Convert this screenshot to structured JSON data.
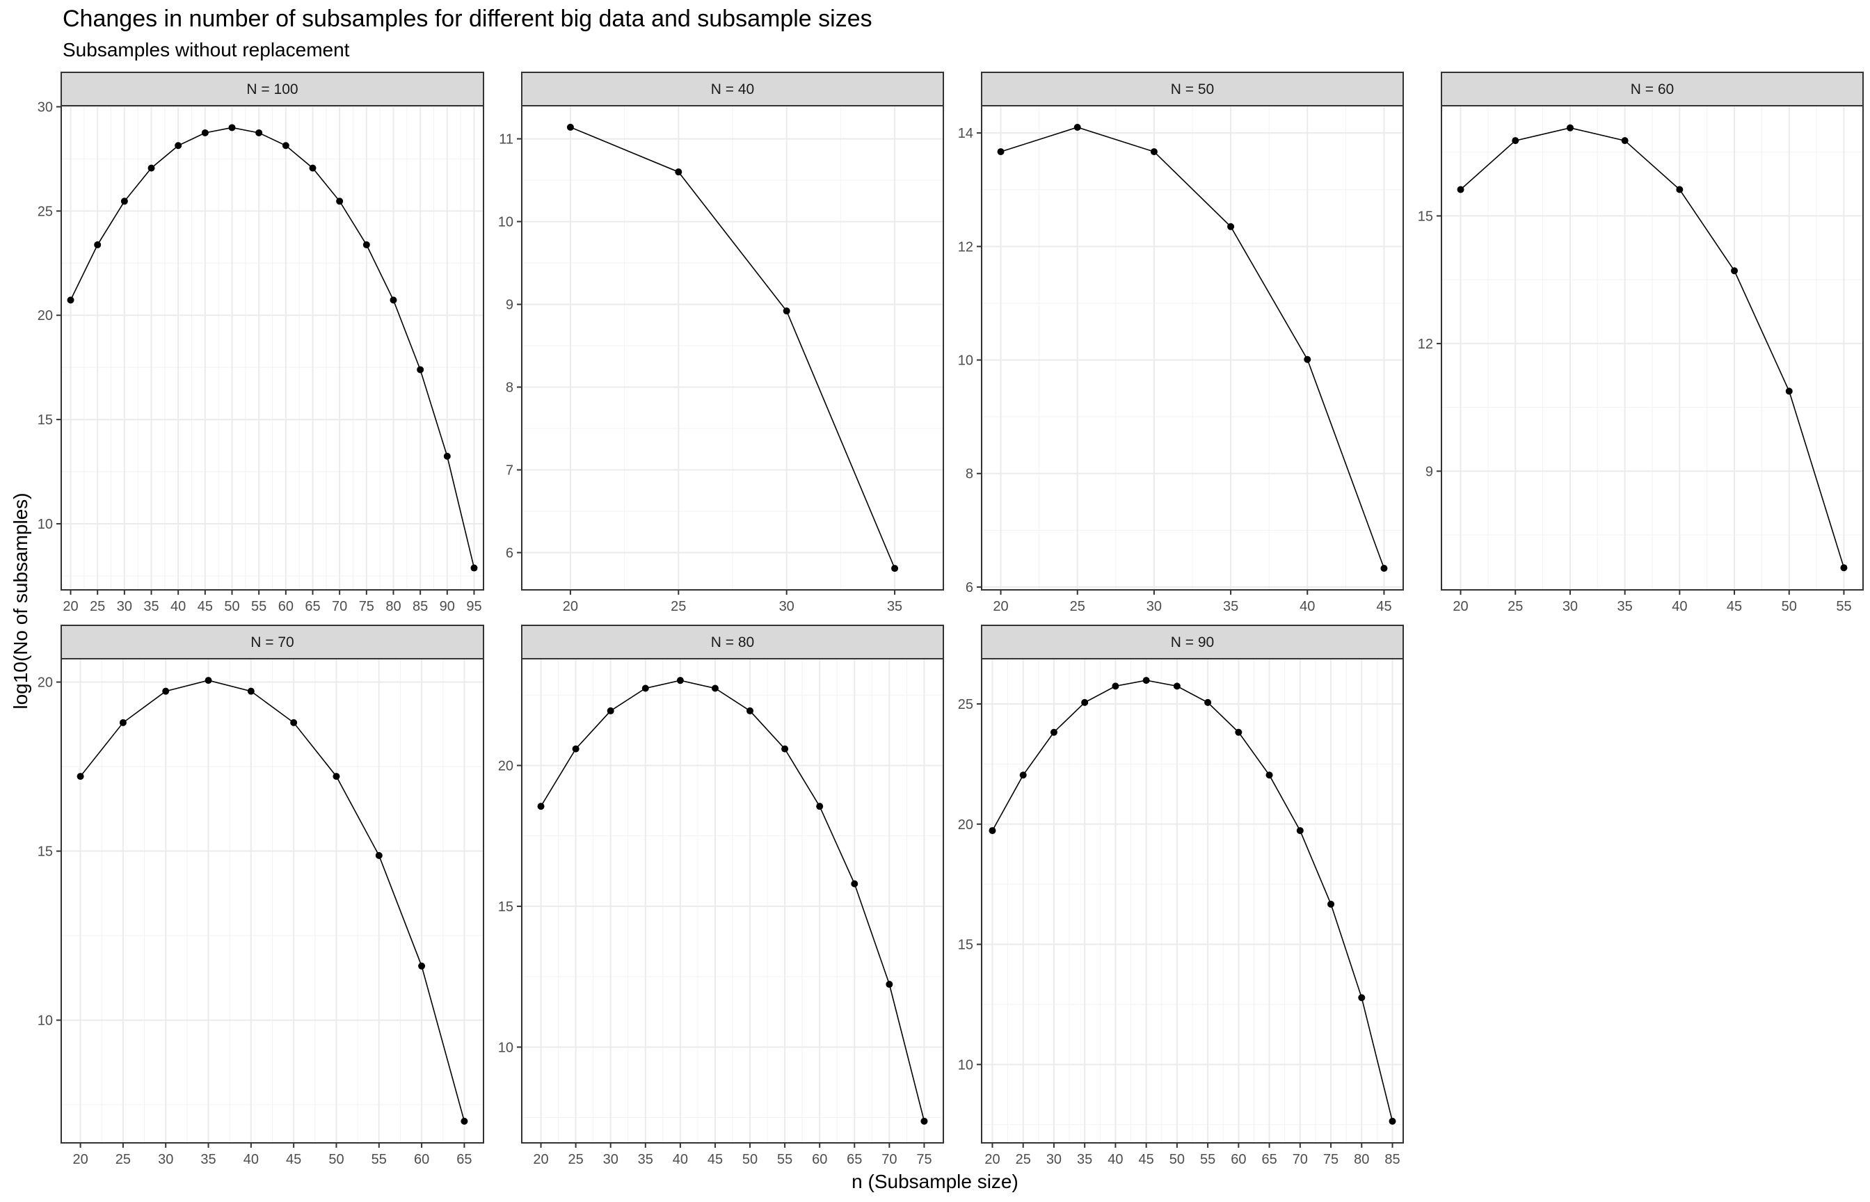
{
  "chart_data": {
    "type": "line",
    "title": "Changes in number of subsamples for different big data and subsample sizes",
    "subtitle": "Subsamples without replacement",
    "xlabel": "n (Subsample size)",
    "ylabel": "log10(No of subsamples)",
    "grid": true,
    "facets": [
      {
        "strip": "N = 100",
        "x": [
          20,
          25,
          30,
          35,
          40,
          45,
          50,
          55,
          60,
          65,
          70,
          75,
          80,
          85,
          90,
          95
        ],
        "y": [
          20.73,
          23.38,
          25.47,
          27.06,
          28.14,
          28.75,
          29.0,
          28.75,
          28.14,
          27.06,
          25.47,
          23.38,
          20.73,
          17.39,
          13.24,
          7.88
        ],
        "xlim": [
          18.25,
          96.75
        ],
        "ylim": [
          6.83,
          30.05
        ],
        "xticks": [
          20,
          25,
          30,
          35,
          40,
          45,
          50,
          55,
          60,
          65,
          70,
          75,
          80,
          85,
          90,
          95
        ],
        "yticks": [
          10,
          15,
          20,
          25,
          30
        ]
      },
      {
        "strip": "N = 40",
        "x": [
          20,
          25,
          30,
          35
        ],
        "y": [
          11.14,
          10.6,
          8.92,
          5.81
        ],
        "xlim": [
          17.75,
          37.25
        ],
        "ylim": [
          5.55,
          11.4
        ],
        "xticks": [
          20,
          25,
          30,
          35
        ],
        "yticks": [
          6,
          7,
          8,
          9,
          10,
          11
        ]
      },
      {
        "strip": "N = 50",
        "x": [
          20,
          25,
          30,
          35,
          40,
          45
        ],
        "y": [
          13.67,
          14.1,
          13.67,
          12.35,
          10.01,
          6.33
        ],
        "xlim": [
          18.75,
          46.25
        ],
        "ylim": [
          5.95,
          14.48
        ],
        "xticks": [
          20,
          25,
          30,
          35,
          40,
          45
        ],
        "yticks": [
          6,
          8,
          10,
          12,
          14
        ]
      },
      {
        "strip": "N = 60",
        "x": [
          20,
          25,
          30,
          35,
          40,
          45,
          50,
          55
        ],
        "y": [
          15.62,
          16.77,
          17.07,
          16.77,
          15.62,
          13.71,
          10.88,
          6.73
        ],
        "xlim": [
          18.25,
          56.75
        ],
        "ylim": [
          6.21,
          17.59
        ],
        "xticks": [
          20,
          25,
          30,
          35,
          40,
          45,
          50,
          55
        ],
        "yticks": [
          9,
          12,
          15
        ]
      },
      {
        "strip": "N = 70",
        "x": [
          20,
          25,
          30,
          35,
          40,
          45,
          50,
          55,
          60,
          65
        ],
        "y": [
          17.21,
          18.8,
          19.73,
          20.05,
          19.73,
          18.8,
          17.21,
          14.87,
          11.6,
          7.01
        ],
        "xlim": [
          17.75,
          67.25
        ],
        "ylim": [
          6.37,
          20.69
        ],
        "xticks": [
          20,
          25,
          30,
          35,
          40,
          45,
          50,
          55,
          60,
          65
        ],
        "yticks": [
          10,
          15,
          20
        ]
      },
      {
        "strip": "N = 80",
        "x": [
          20,
          25,
          30,
          35,
          40,
          45,
          50,
          55,
          60,
          65,
          70,
          75
        ],
        "y": [
          18.55,
          20.59,
          21.94,
          22.74,
          23.02,
          22.74,
          21.94,
          20.59,
          18.55,
          15.8,
          12.23,
          7.37
        ],
        "xlim": [
          17.25,
          77.75
        ],
        "ylim": [
          6.6,
          23.79
        ],
        "xticks": [
          20,
          25,
          30,
          35,
          40,
          45,
          50,
          55,
          60,
          65,
          70,
          75
        ],
        "yticks": [
          10,
          15,
          20
        ]
      },
      {
        "strip": "N = 90",
        "x": [
          20,
          25,
          30,
          35,
          40,
          45,
          50,
          55,
          60,
          65,
          70,
          75,
          80,
          85
        ],
        "y": [
          19.73,
          22.04,
          23.82,
          25.06,
          25.74,
          25.98,
          25.74,
          25.06,
          23.82,
          22.04,
          19.73,
          16.67,
          12.78,
          7.64
        ],
        "xlim": [
          18.25,
          86.75
        ],
        "ylim": [
          6.74,
          26.88
        ],
        "xticks": [
          20,
          25,
          30,
          35,
          40,
          45,
          50,
          55,
          60,
          65,
          70,
          75,
          80,
          85
        ],
        "yticks": [
          10,
          15,
          20,
          25
        ]
      }
    ]
  }
}
